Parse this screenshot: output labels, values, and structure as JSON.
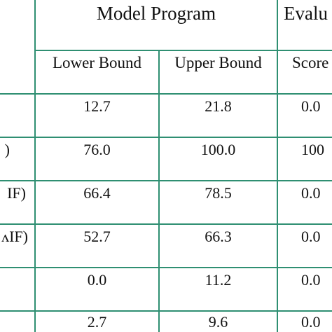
{
  "table": {
    "groups": [
      {
        "label": "Model Program"
      },
      {
        "label": "Evalu"
      }
    ],
    "subheaders": [
      "Lower Bound",
      "Upper Bound",
      "Score"
    ],
    "rows": [
      {
        "label": "",
        "lower": "12.7",
        "upper": "21.8",
        "score": "0.0"
      },
      {
        "label": ")",
        "lower": "76.0",
        "upper": "100.0",
        "score": "100"
      },
      {
        "label": "IF)",
        "lower": "66.4",
        "upper": "78.5",
        "score": "0.0"
      },
      {
        "label": "ʌIF)",
        "lower": "52.7",
        "upper": "66.3",
        "score": "0.0"
      },
      {
        "label": "",
        "lower": "0.0",
        "upper": "11.2",
        "score": "0.0"
      },
      {
        "label": "",
        "lower": "2.7",
        "upper": "9.6",
        "score": "0.0"
      }
    ]
  },
  "colors": {
    "rule": "#2f8f72",
    "text": "#111111",
    "background": "#ffffff"
  }
}
